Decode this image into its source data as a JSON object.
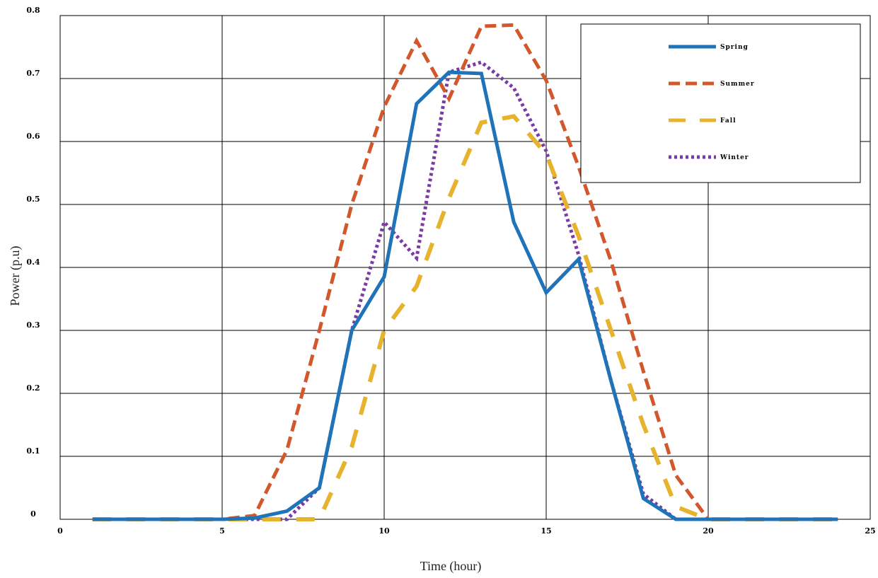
{
  "chart_data": {
    "type": "line",
    "xlabel": "Time (hour)",
    "ylabel": "Power (p.u)",
    "xlim": [
      0,
      25
    ],
    "ylim": [
      0,
      0.8
    ],
    "xticks": [
      0,
      5,
      10,
      15,
      20,
      25
    ],
    "yticks": [
      0,
      0.1,
      0.2,
      0.3,
      0.4,
      0.5,
      0.6,
      0.7,
      0.8
    ],
    "xtick_labels": [
      "0",
      "5",
      "10",
      "15",
      "20",
      "25"
    ],
    "ytick_labels": [
      "0",
      "0.1",
      "0.2",
      "0.3",
      "0.4",
      "0.5",
      "0.6",
      "0.7",
      "0.8"
    ],
    "grid": true,
    "legend_position": "top-right",
    "x": [
      1,
      2,
      3,
      4,
      5,
      6,
      7,
      8,
      9,
      10,
      11,
      12,
      13,
      14,
      15,
      16,
      17,
      18,
      19,
      20,
      21,
      22,
      23,
      24
    ],
    "series": [
      {
        "name": "Spring",
        "color": "#1f73b8",
        "dash": "solid",
        "values": [
          0,
          0,
          0,
          0,
          0,
          0.002,
          0.013,
          0.05,
          0.3,
          0.385,
          0.66,
          0.71,
          0.708,
          0.472,
          0.36,
          0.413,
          0.22,
          0.033,
          0,
          0,
          0,
          0,
          0,
          0
        ]
      },
      {
        "name": "Summer",
        "color": "#d2572a",
        "dash": "dash",
        "values": [
          0,
          0,
          0,
          0,
          0,
          0.006,
          0.11,
          0.3,
          0.5,
          0.655,
          0.76,
          0.668,
          0.783,
          0.785,
          0.697,
          0.56,
          0.41,
          0.235,
          0.07,
          0,
          0,
          0,
          0,
          0
        ]
      },
      {
        "name": "Fall",
        "color": "#e7b22c",
        "dash": "longdash",
        "values": [
          0,
          0,
          0,
          0,
          0,
          0,
          0,
          0,
          0.115,
          0.3,
          0.37,
          0.51,
          0.63,
          0.64,
          0.58,
          0.45,
          0.3,
          0.15,
          0.02,
          0,
          0,
          0,
          0,
          0
        ]
      },
      {
        "name": "Winter",
        "color": "#7b3aa4",
        "dash": "dot",
        "values": [
          0,
          0,
          0,
          0,
          0,
          0,
          0,
          0.05,
          0.3,
          0.472,
          0.415,
          0.71,
          0.726,
          0.685,
          0.585,
          0.42,
          0.22,
          0.04,
          0,
          0,
          0,
          0,
          0,
          0
        ]
      }
    ]
  }
}
